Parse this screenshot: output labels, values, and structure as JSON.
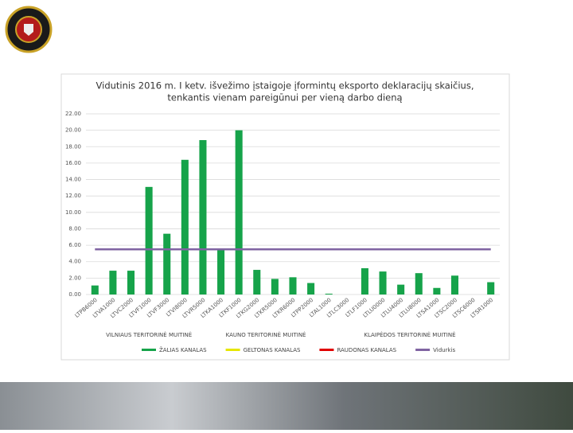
{
  "chart_data": {
    "type": "bar",
    "title": [
      "Vidutinis 2016 m. I ketv. išvežimo įstaigoje įformintų eksporto deklaracijų skaičius,",
      "tenkantis vienam pareigūnui per vieną darbo dieną"
    ],
    "categories": [
      "LTPB6000",
      "LTVA1000",
      "LTVC2000",
      "LTVF1000",
      "LTVF3000",
      "LTVI8000",
      "LTVR5000",
      "LTKA1000",
      "LTKF1000",
      "LTKG2000",
      "LTKR5000",
      "LTKR6000",
      "LTPP2000",
      "LTAL1000",
      "LTLC3000",
      "LTLF1000",
      "LTLU0000",
      "LTLU4000",
      "LTLU8000",
      "LTSA1000",
      "LTSC2000",
      "LTSC6000",
      "LTSR1000"
    ],
    "values": [
      1.1,
      2.9,
      2.9,
      13.1,
      7.4,
      16.4,
      18.8,
      5.5,
      20.0,
      3.0,
      1.9,
      2.1,
      1.4,
      0.1,
      0,
      3.2,
      2.8,
      1.2,
      2.6,
      0.8,
      2.3,
      0,
      1.5
    ],
    "color": "#16a34a",
    "average": {
      "value": 5.5,
      "color": "#8064a2"
    },
    "groups": [
      {
        "label": "VILNIAUS TERITORINĖ MUITINĖ",
        "first": "LTPB6000",
        "last": "LTVR5000"
      },
      {
        "label": "KAUNO TERITORINĖ MUITINĖ",
        "first": "LTKA1000",
        "last": "LTPP2000"
      },
      {
        "label": "KLAIPĖDOS TERITORINĖ MUITINĖ",
        "first": "LTAL1000",
        "last": "LTSR1000"
      }
    ],
    "legend": [
      {
        "name": "ŽALIAS KANALAS",
        "color": "#16a34a"
      },
      {
        "name": "GELTONAS KANALAS",
        "color": "#e6e600"
      },
      {
        "name": "RAUDONAS KANALAS",
        "color": "#e00000"
      },
      {
        "name": "Vidurkis",
        "color": "#8064a2"
      }
    ],
    "ylim": [
      0,
      22
    ],
    "yticks": [
      {
        "value": 0,
        "label": "0.00"
      },
      {
        "value": 2,
        "label": "2.00"
      },
      {
        "value": 4,
        "label": "4.00"
      },
      {
        "value": 6,
        "label": "6.00"
      },
      {
        "value": 8,
        "label": "8.00"
      },
      {
        "value": 10,
        "label": "10.00"
      },
      {
        "value": 12,
        "label": "12.00"
      },
      {
        "value": 14,
        "label": "14.00"
      },
      {
        "value": 16,
        "label": "16.00"
      },
      {
        "value": 18,
        "label": "18.00"
      },
      {
        "value": 20,
        "label": "20.00"
      },
      {
        "value": 22,
        "label": "22.00"
      }
    ],
    "grid": true
  }
}
